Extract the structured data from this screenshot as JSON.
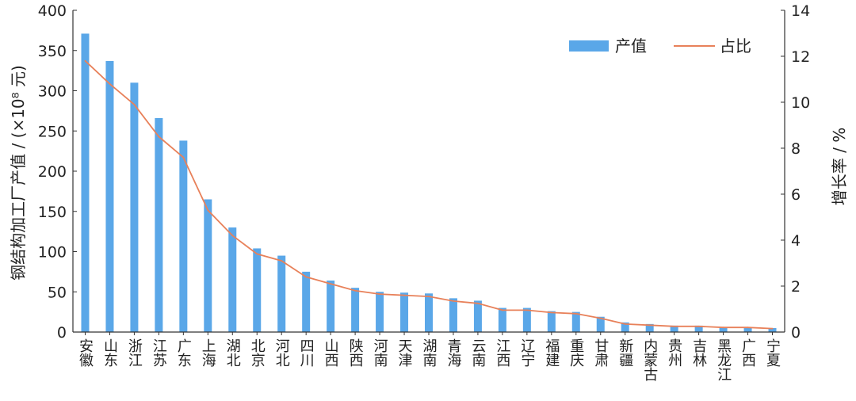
{
  "chart_data": {
    "type": "bar",
    "categories": [
      "安徽",
      "山东",
      "浙江",
      "江苏",
      "广东",
      "上海",
      "湖北",
      "北京",
      "河北",
      "四川",
      "山西",
      "陕西",
      "河南",
      "天津",
      "湖南",
      "青海",
      "云南",
      "江西",
      "辽宁",
      "福建",
      "重庆",
      "甘肃",
      "新疆",
      "内蒙古",
      "贵州",
      "吉林",
      "黑龙江",
      "广西",
      "宁夏"
    ],
    "series": [
      {
        "name": "产值",
        "kind": "bar",
        "axis": "left",
        "color": "#5aa7e8",
        "values": [
          371,
          337,
          310,
          266,
          238,
          165,
          130,
          104,
          95,
          75,
          64,
          55,
          50,
          49,
          48,
          42,
          39,
          30,
          30,
          26,
          25,
          19,
          12,
          10,
          8,
          8,
          6,
          6,
          5
        ]
      },
      {
        "name": "占比",
        "kind": "line",
        "axis": "right",
        "color": "#e8815a",
        "values": [
          11.8,
          10.8,
          9.9,
          8.5,
          7.6,
          5.3,
          4.2,
          3.4,
          3.1,
          2.4,
          2.1,
          1.8,
          1.65,
          1.6,
          1.55,
          1.35,
          1.25,
          0.95,
          0.95,
          0.85,
          0.8,
          0.6,
          0.35,
          0.3,
          0.25,
          0.25,
          0.2,
          0.2,
          0.15
        ]
      }
    ],
    "ylabel": "钢结构加工厂产值 / (×10⁸ 元)",
    "y2label": "增长率 / %",
    "ylim": [
      0,
      400
    ],
    "y2lim": [
      0,
      14
    ],
    "yticks": [
      "0",
      "50",
      "100",
      "150",
      "200",
      "250",
      "300",
      "350",
      "400"
    ],
    "y2ticks": [
      "0",
      "2",
      "4",
      "6",
      "8",
      "10",
      "12",
      "14"
    ],
    "legend_position": "top-right",
    "grid": false
  }
}
